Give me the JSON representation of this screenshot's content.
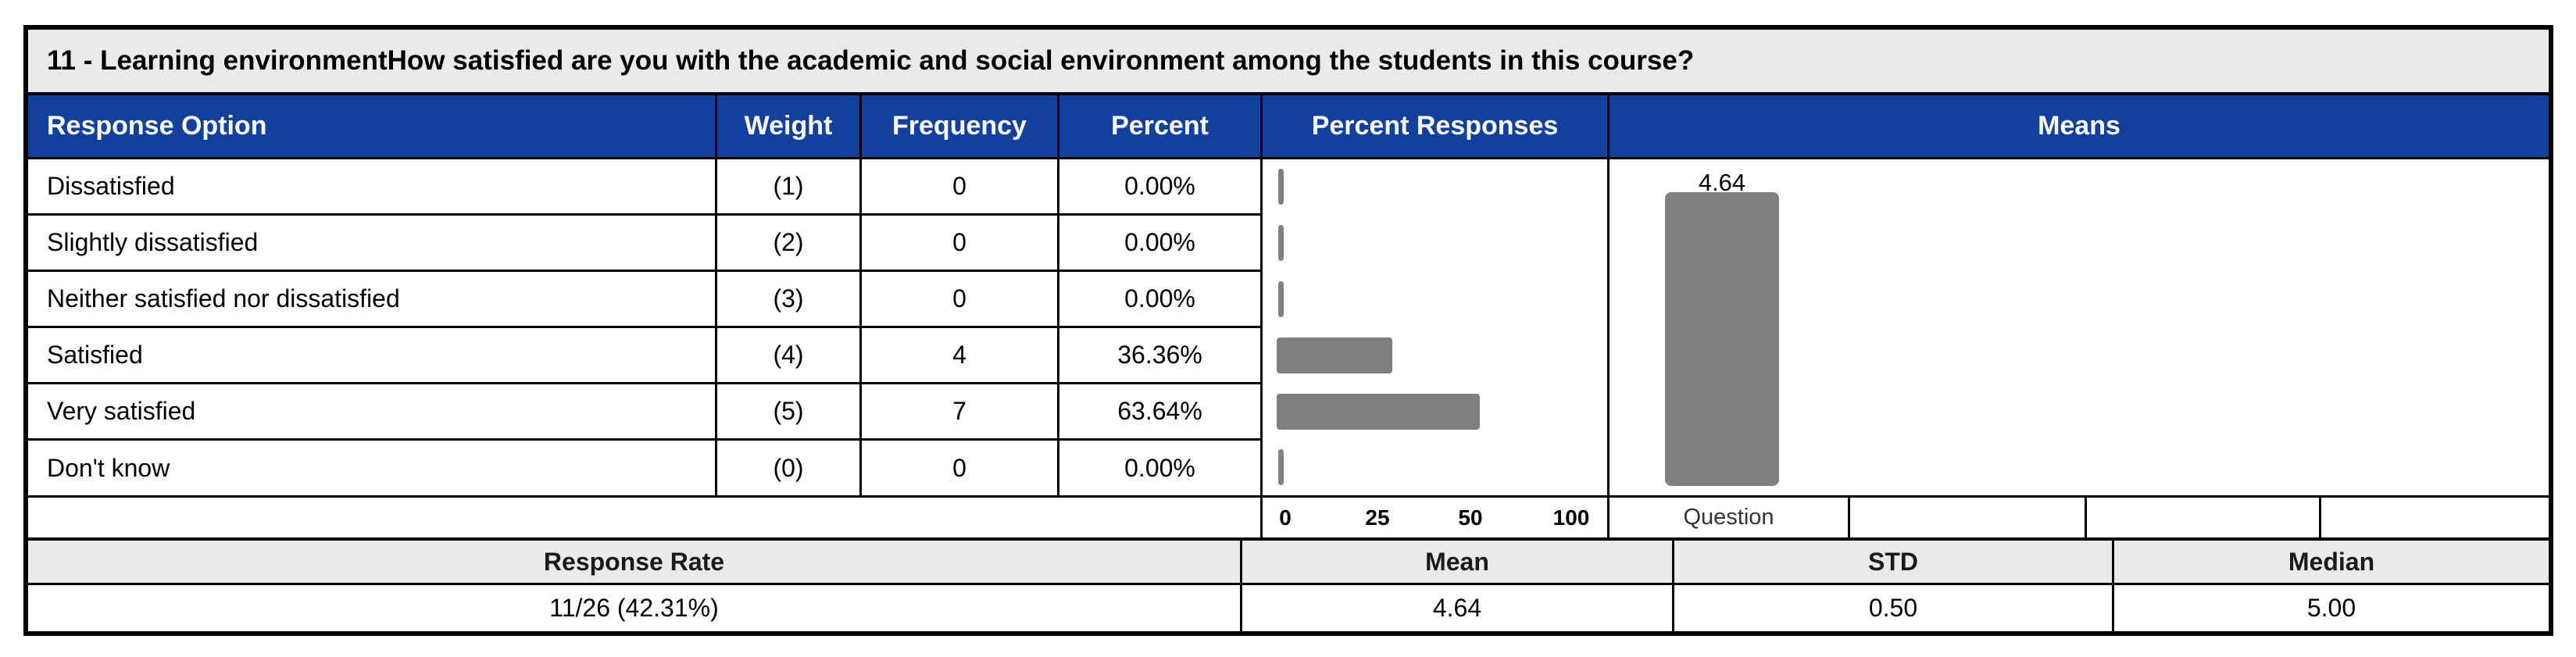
{
  "title": "11 - Learning environmentHow satisfied are you with the academic and social environment among the students in this course?",
  "table": {
    "columns": [
      "Response Option",
      "Weight",
      "Frequency",
      "Percent",
      "Percent Responses",
      "Means"
    ],
    "rows": [
      {
        "option": "Dissatisfied",
        "weight": "(1)",
        "frequency": "0",
        "percent": "0.00%"
      },
      {
        "option": "Slightly dissatisfied",
        "weight": "(2)",
        "frequency": "0",
        "percent": "0.00%"
      },
      {
        "option": "Neither satisfied nor dissatisfied",
        "weight": "(3)",
        "frequency": "0",
        "percent": "0.00%"
      },
      {
        "option": "Satisfied",
        "weight": "(4)",
        "frequency": "4",
        "percent": "36.36%"
      },
      {
        "option": "Very satisfied",
        "weight": "(5)",
        "frequency": "7",
        "percent": "63.64%"
      },
      {
        "option": "Don't know",
        "weight": "(0)",
        "frequency": "0",
        "percent": "0.00%"
      }
    ]
  },
  "percent_axis": {
    "tick_labels": [
      "0",
      "25",
      "50",
      "100"
    ]
  },
  "means": {
    "value_label": "4.64",
    "category_label": "Question"
  },
  "summary": {
    "headers": [
      "Response Rate",
      "Mean",
      "STD",
      "Median"
    ],
    "values": [
      "11/26 (42.31%)",
      "4.64",
      "0.50",
      "5.00"
    ]
  },
  "colors": {
    "header_blue": "#13409D",
    "bar_gray": "#808080",
    "panel_gray": "#EAEAEA"
  },
  "chart_data": [
    {
      "type": "table",
      "title": "11 - Learning environmentHow satisfied are you with the academic and social environment among the students in this course?",
      "columns": [
        "Response Option",
        "Weight",
        "Frequency",
        "Percent"
      ],
      "rows": [
        [
          "Dissatisfied",
          "(1)",
          0,
          "0.00%"
        ],
        [
          "Slightly dissatisfied",
          "(2)",
          0,
          "0.00%"
        ],
        [
          "Neither satisfied nor dissatisfied",
          "(3)",
          0,
          "0.00%"
        ],
        [
          "Satisfied",
          "(4)",
          4,
          "36.36%"
        ],
        [
          "Very satisfied",
          "(5)",
          7,
          "63.64%"
        ],
        [
          "Don't know",
          "(0)",
          0,
          "0.00%"
        ]
      ],
      "footer": {
        "headers": [
          "Response Rate",
          "Mean",
          "STD",
          "Median"
        ],
        "values": [
          "11/26 (42.31%)",
          "4.64",
          "0.50",
          "5.00"
        ]
      }
    },
    {
      "type": "bar",
      "title": "Percent Responses",
      "orientation": "horizontal",
      "categories": [
        "Dissatisfied",
        "Slightly dissatisfied",
        "Neither satisfied nor dissatisfied",
        "Satisfied",
        "Very satisfied",
        "Don't know"
      ],
      "values": [
        0,
        0,
        0,
        36.36,
        63.64,
        0
      ],
      "xlim": [
        0,
        100
      ],
      "xticks": [
        0,
        25,
        50,
        100
      ],
      "grid": false,
      "bar_color": "#808080"
    },
    {
      "type": "bar",
      "title": "Means",
      "orientation": "vertical",
      "categories": [
        "Question"
      ],
      "values": [
        4.64
      ],
      "data_labels": [
        "4.64"
      ],
      "ylim": [
        0,
        5
      ],
      "grid": false,
      "bar_color": "#808080"
    }
  ]
}
